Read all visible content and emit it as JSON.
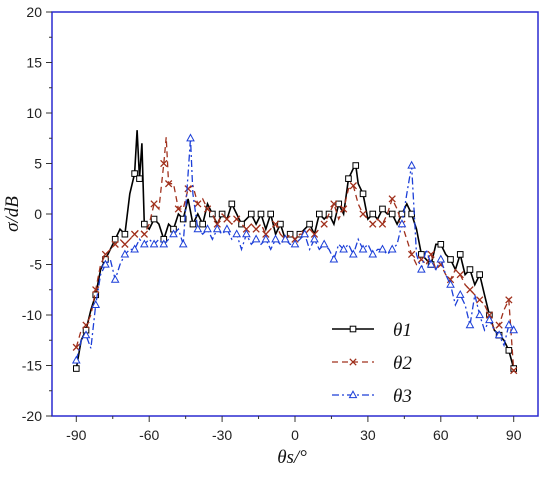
{
  "chart_data": {
    "type": "line",
    "xlabel": "θs/°",
    "ylabel": "σ/dB",
    "xlim": [
      -100,
      100
    ],
    "ylim": [
      -20,
      20
    ],
    "xticks": [
      -90,
      -60,
      -30,
      0,
      30,
      60,
      90
    ],
    "yticks": [
      -20,
      -15,
      -10,
      -5,
      0,
      5,
      10,
      15,
      20
    ],
    "grid": false,
    "legend_position": "bottom-right",
    "series": [
      {
        "name": "θ1",
        "color": "#000000",
        "marker": "square",
        "dash": "solid",
        "x": [
          -90,
          -88,
          -86,
          -84,
          -82,
          -80,
          -78,
          -76,
          -74,
          -72,
          -70,
          -68,
          -66,
          -65,
          -64,
          -63,
          -62,
          -60,
          -58,
          -56,
          -54,
          -52,
          -50,
          -48,
          -46,
          -44,
          -42,
          -40,
          -38,
          -36,
          -34,
          -32,
          -30,
          -28,
          -26,
          -24,
          -22,
          -20,
          -18,
          -16,
          -14,
          -12,
          -10,
          -8,
          -6,
          -4,
          -2,
          0,
          2,
          4,
          6,
          8,
          10,
          12,
          14,
          16,
          18,
          20,
          22,
          24,
          25,
          26,
          28,
          30,
          32,
          34,
          36,
          38,
          40,
          42,
          44,
          46,
          48,
          50,
          52,
          54,
          56,
          58,
          60,
          62,
          64,
          66,
          68,
          70,
          72,
          74,
          76,
          78,
          80,
          82,
          84,
          86,
          88,
          90
        ],
        "y": [
          -15.3,
          -12.5,
          -11.5,
          -9.5,
          -8,
          -5.5,
          -4.5,
          -3.5,
          -2.5,
          -1.5,
          -2,
          2,
          4,
          8.3,
          3.5,
          7,
          -1,
          -1.5,
          -0.5,
          -1,
          -2.5,
          -1,
          -1.5,
          0,
          -0.5,
          1.5,
          -1,
          0,
          -1,
          1,
          0,
          -1,
          0,
          -0.5,
          1,
          0,
          -1,
          -0.5,
          0,
          -1,
          0,
          -1.5,
          0,
          -2,
          -1,
          -2.5,
          -2,
          -2.5,
          -2,
          -1.5,
          -1,
          -2,
          0,
          -0.5,
          0,
          -1,
          1,
          0,
          3.5,
          4.5,
          4.8,
          3,
          2,
          -0.5,
          0,
          -0.5,
          0.5,
          0,
          0,
          -1,
          0,
          1,
          0,
          -1.5,
          -4,
          -4.5,
          -5,
          -3,
          -3,
          -4,
          -4.5,
          -5.5,
          -4,
          -6,
          -5.5,
          -7,
          -6,
          -8,
          -10,
          -11.5,
          -12,
          -12.5,
          -13.5,
          -15.3
        ]
      },
      {
        "name": "θ2",
        "color": "#a0301c",
        "marker": "x",
        "dash": "dashed",
        "x": [
          -90,
          -88,
          -86,
          -84,
          -82,
          -80,
          -78,
          -76,
          -74,
          -72,
          -70,
          -68,
          -66,
          -64,
          -62,
          -60,
          -58,
          -56,
          -54,
          -53,
          -52,
          -50,
          -48,
          -46,
          -44,
          -42,
          -40,
          -38,
          -36,
          -34,
          -32,
          -30,
          -28,
          -26,
          -24,
          -22,
          -20,
          -18,
          -16,
          -14,
          -12,
          -10,
          -8,
          -6,
          -4,
          -2,
          0,
          2,
          4,
          6,
          8,
          10,
          12,
          14,
          16,
          18,
          20,
          22,
          24,
          26,
          28,
          30,
          32,
          34,
          36,
          38,
          40,
          42,
          44,
          46,
          48,
          50,
          52,
          54,
          56,
          58,
          60,
          62,
          64,
          66,
          68,
          70,
          72,
          74,
          76,
          78,
          80,
          82,
          84,
          86,
          88,
          90
        ],
        "y": [
          -13.2,
          -11.5,
          -11,
          -10,
          -7.5,
          -5,
          -4,
          -3.5,
          -3,
          -2.5,
          -3,
          -2.5,
          -2,
          -1.5,
          -2,
          -1,
          1,
          0.5,
          5,
          7.6,
          3,
          3,
          0.5,
          0.5,
          2.5,
          2.8,
          1,
          1.5,
          0.5,
          0,
          -1,
          0,
          -0.5,
          -1,
          -0.5,
          -1,
          -1.5,
          -1,
          -1.5,
          -1,
          -2,
          -1.5,
          -1,
          -2,
          -2.5,
          -2,
          -2.5,
          -2,
          -2,
          -1.5,
          -2,
          -1.5,
          -1,
          0,
          1,
          -0.5,
          0.5,
          2.5,
          2.8,
          1,
          0,
          -0.5,
          -1,
          -0.5,
          -1,
          0,
          1.5,
          0.5,
          -1,
          -2.5,
          -4,
          -5,
          -4.5,
          -5,
          -4,
          -5.5,
          -5,
          -6,
          -6.5,
          -5.5,
          -6,
          -7,
          -7.5,
          -8,
          -8.5,
          -9,
          -10,
          -11.5,
          -11,
          -9.5,
          -8.5,
          -15.5
        ]
      },
      {
        "name": "θ3",
        "color": "#1c3fd8",
        "marker": "triangle",
        "dash": "dashdot",
        "x": [
          -90,
          -88,
          -86,
          -84,
          -82,
          -80,
          -78,
          -76,
          -74,
          -72,
          -70,
          -68,
          -66,
          -64,
          -62,
          -60,
          -58,
          -56,
          -54,
          -52,
          -50,
          -48,
          -46,
          -44,
          -43,
          -42,
          -40,
          -38,
          -36,
          -34,
          -32,
          -30,
          -28,
          -26,
          -24,
          -22,
          -20,
          -18,
          -16,
          -14,
          -12,
          -10,
          -8,
          -6,
          -4,
          -2,
          0,
          2,
          4,
          6,
          8,
          10,
          12,
          14,
          16,
          18,
          20,
          22,
          24,
          26,
          28,
          30,
          32,
          34,
          36,
          38,
          40,
          42,
          44,
          46,
          48,
          50,
          52,
          54,
          56,
          58,
          60,
          62,
          64,
          66,
          68,
          70,
          72,
          74,
          76,
          78,
          80,
          82,
          84,
          86,
          88,
          90
        ],
        "y": [
          -14.5,
          -12.5,
          -12,
          -13.3,
          -9,
          -6,
          -5,
          -4.5,
          -6.5,
          -5,
          -4,
          -3.5,
          -3.5,
          -2.5,
          -3,
          -2.5,
          -3,
          -2.5,
          -3,
          -2.5,
          -2,
          -1.5,
          -3,
          4,
          7.5,
          2,
          -1.5,
          -2,
          -1.5,
          -2.5,
          -1.5,
          -2,
          -1.5,
          -2.5,
          -2,
          -3.5,
          -2,
          -3,
          -2.5,
          -3,
          -2.5,
          -3.5,
          -2.5,
          -3,
          -2.5,
          -3,
          -3,
          -2.5,
          -2,
          -3.5,
          -2.5,
          -3.5,
          -3,
          -3.5,
          -4.5,
          -3,
          -3.5,
          -3,
          -4,
          -2.5,
          -3.5,
          -3,
          -4,
          -3.5,
          -3.5,
          -4,
          -3.5,
          -3,
          -1,
          2,
          4.8,
          -4,
          -5.5,
          -3.5,
          -5,
          -5.5,
          -4.5,
          -6,
          -7,
          -9,
          -8,
          -9,
          -11,
          -8,
          -10,
          -11.5,
          -10.5,
          -11.5,
          -12,
          -13,
          -11,
          -11.5
        ]
      }
    ]
  }
}
